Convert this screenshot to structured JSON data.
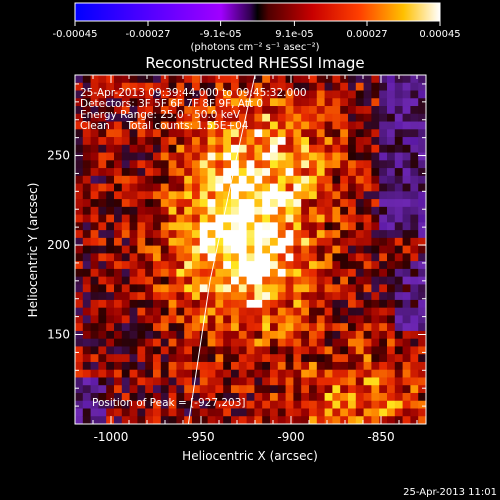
{
  "chart_data": {
    "type": "heatmap",
    "title": "Reconstructed RHESSI Image",
    "xlabel": "Heliocentric X (arcsec)",
    "ylabel": "Heliocentric Y (arcsec)",
    "xlim": [
      -1020,
      -825
    ],
    "ylim": [
      100,
      295
    ],
    "x_ticks": [
      -1000,
      -950,
      -900,
      -850
    ],
    "x_tick_labels": [
      "-1000",
      "-950",
      "-900",
      "-850"
    ],
    "y_ticks": [
      150,
      200,
      250
    ],
    "y_tick_labels": [
      "150",
      "200",
      "250"
    ],
    "colorbar": {
      "ticks": [
        -0.00045,
        -0.00027,
        -9.1e-05,
        9.1e-05,
        0.00027,
        0.00045
      ],
      "tick_labels": [
        "-0.00045",
        "-0.00027",
        "-9.1e-05",
        "9.1e-05",
        "0.00027",
        "0.00045"
      ],
      "units_label": "(photons cm⁻² s⁻¹ asec⁻²)",
      "range": [
        -0.00045,
        0.00045
      ]
    },
    "info_lines": [
      "25-Apr-2013 09:39:44.000 to 09:45:32.000",
      "Detectors: 3F 5F 6F 7F 8F 9F, Att 0",
      "Energy Range: 25.0 - 50.0 keV",
      "Clean     Total counts: 1.55E+04"
    ],
    "peak_label": "Position of Peak = [-927,203]",
    "peak": {
      "x": -927,
      "y": 203
    },
    "limb_curve": [
      [
        -957,
        100
      ],
      [
        -945,
        180
      ],
      [
        -930,
        250
      ],
      [
        -920,
        295
      ]
    ]
  },
  "footer_timestamp": "25-Apr-2013 11:01"
}
